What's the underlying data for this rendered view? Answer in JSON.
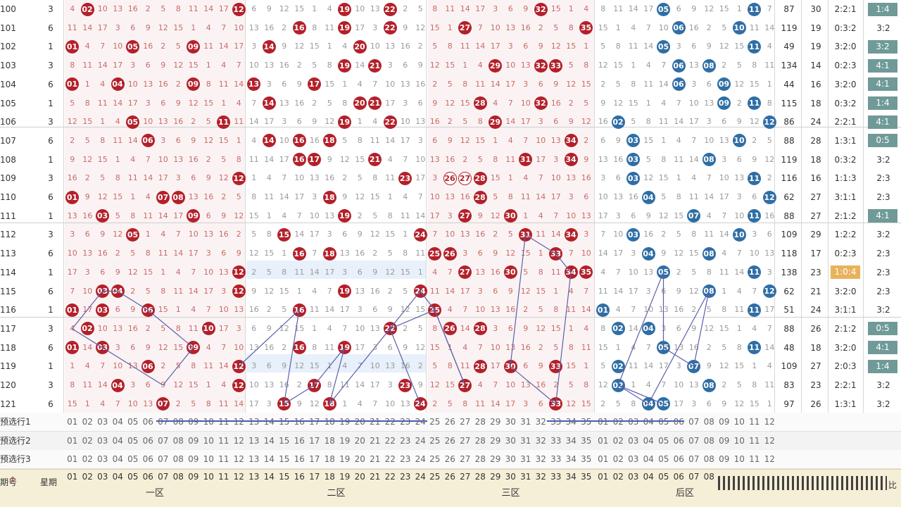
{
  "colors": {
    "red_ball": "#b3202a",
    "blue_ball": "#2f6ea5",
    "ratio_badge": "#6f9a98",
    "ratio_badge_alt": "#e9b25a",
    "zone_line": "#5a5fa8"
  },
  "rows": [
    {
      "issue": "100",
      "week": "3",
      "front": [
        2,
        12
      ],
      "z2": [
        19,
        22
      ],
      "z3": [
        32
      ],
      "back": [
        5,
        11
      ],
      "sum": "87",
      "span": "30",
      "ratio": "2:2:1",
      "odd": "1:4",
      "odd_badge": true
    },
    {
      "issue": "101",
      "week": "6",
      "front": [],
      "z2": [
        16,
        19,
        22
      ],
      "z3": [
        27,
        35
      ],
      "back": [
        6,
        10
      ],
      "sum": "119",
      "span": "19",
      "ratio": "0:3:2",
      "odd": "3:2",
      "odd_badge": false
    },
    {
      "issue": "102",
      "week": "1",
      "front": [
        1,
        5,
        9
      ],
      "z2": [
        14,
        20
      ],
      "z3": [],
      "back": [
        5,
        11
      ],
      "sum": "49",
      "span": "19",
      "ratio": "3:2:0",
      "odd": "3:2",
      "odd_badge": true
    },
    {
      "issue": "103",
      "week": "3",
      "front": [],
      "z2": [
        19,
        21
      ],
      "z3": [
        29,
        32,
        33
      ],
      "back": [
        6,
        8
      ],
      "sum": "134",
      "span": "14",
      "ratio": "0:2:3",
      "odd": "4:1",
      "odd_badge": true
    },
    {
      "issue": "104",
      "week": "6",
      "front": [
        1,
        4,
        9
      ],
      "z2": [
        13,
        17
      ],
      "z3": [],
      "back": [
        6,
        9
      ],
      "sum": "44",
      "span": "16",
      "ratio": "3:2:0",
      "odd": "4:1",
      "odd_badge": true
    },
    {
      "issue": "105",
      "week": "1",
      "front": [],
      "z2": [
        14,
        20,
        21
      ],
      "z3": [
        28,
        32
      ],
      "back": [
        9,
        11
      ],
      "sum": "115",
      "span": "18",
      "ratio": "0:3:2",
      "odd": "1:4",
      "odd_badge": true
    },
    {
      "issue": "106",
      "week": "3",
      "front": [
        5,
        11
      ],
      "z2": [
        19,
        22
      ],
      "z3": [
        29
      ],
      "back": [
        2,
        12
      ],
      "sum": "86",
      "span": "24",
      "ratio": "2:2:1",
      "odd": "4:1",
      "odd_badge": true
    },
    {
      "issue": "107",
      "week": "6",
      "front": [
        6
      ],
      "z2": [
        14,
        16,
        18
      ],
      "z3": [
        34
      ],
      "back": [
        3,
        10
      ],
      "sum": "88",
      "span": "28",
      "ratio": "1:3:1",
      "odd": "0:5",
      "odd_badge": true
    },
    {
      "issue": "108",
      "week": "1",
      "front": [],
      "z2": [
        16,
        17,
        21
      ],
      "z3": [
        31,
        34
      ],
      "back": [
        3,
        8
      ],
      "sum": "119",
      "span": "18",
      "ratio": "0:3:2",
      "odd": "3:2",
      "odd_badge": false
    },
    {
      "issue": "109",
      "week": "3",
      "front": [
        12
      ],
      "z2": [
        23
      ],
      "z3": [
        28
      ],
      "z3_hollow": [
        26,
        27
      ],
      "back": [
        3,
        11
      ],
      "sum": "116",
      "span": "16",
      "ratio": "1:1:3",
      "odd": "2:3",
      "odd_badge": false
    },
    {
      "issue": "110",
      "week": "6",
      "front": [
        1,
        7,
        8
      ],
      "z2": [
        18
      ],
      "z3": [
        28
      ],
      "back": [
        4,
        12
      ],
      "sum": "62",
      "span": "27",
      "ratio": "3:1:1",
      "odd": "2:3",
      "odd_badge": false
    },
    {
      "issue": "111",
      "week": "1",
      "front": [
        3,
        9
      ],
      "z2": [
        19
      ],
      "z3": [
        27,
        30
      ],
      "back": [
        7,
        11
      ],
      "sum": "88",
      "span": "27",
      "ratio": "2:1:2",
      "odd": "4:1",
      "odd_badge": true
    },
    {
      "issue": "112",
      "week": "3",
      "front": [
        5
      ],
      "z2": [
        15,
        24
      ],
      "z3": [
        31,
        34
      ],
      "back": [
        3,
        10
      ],
      "sum": "109",
      "span": "29",
      "ratio": "1:2:2",
      "odd": "3:2",
      "odd_badge": false
    },
    {
      "issue": "113",
      "week": "6",
      "front": [],
      "z2": [
        16,
        18
      ],
      "z3": [
        25,
        26,
        33
      ],
      "back": [
        4,
        8
      ],
      "sum": "118",
      "span": "17",
      "ratio": "0:2:3",
      "odd": "2:3",
      "odd_badge": false
    },
    {
      "issue": "114",
      "week": "1",
      "front": [
        12
      ],
      "z2": [],
      "z3": [
        27,
        30,
        34,
        35
      ],
      "back": [
        5,
        11
      ],
      "sum": "138",
      "span": "23",
      "ratio": "1:0:4",
      "odd": "2:3",
      "odd_badge": false,
      "ratio_badge": true
    },
    {
      "issue": "115",
      "week": "6",
      "front": [
        3,
        4,
        12
      ],
      "z2": [
        19,
        24
      ],
      "z3": [],
      "back": [
        8,
        12
      ],
      "sum": "62",
      "span": "21",
      "ratio": "3:2:0",
      "odd": "2:3",
      "odd_badge": false
    },
    {
      "issue": "116",
      "week": "1",
      "front": [
        1,
        3,
        6
      ],
      "z2": [
        16
      ],
      "z3": [
        25
      ],
      "back": [
        1,
        11
      ],
      "sum": "51",
      "span": "24",
      "ratio": "3:1:1",
      "odd": "3:2",
      "odd_badge": false
    },
    {
      "issue": "117",
      "week": "3",
      "front": [
        2,
        10
      ],
      "z2": [
        22
      ],
      "z3": [
        26,
        28
      ],
      "back": [
        2,
        4
      ],
      "sum": "88",
      "span": "26",
      "ratio": "2:1:2",
      "odd": "0:5",
      "odd_badge": true
    },
    {
      "issue": "118",
      "week": "6",
      "front": [
        1,
        3,
        9
      ],
      "z2": [
        16,
        19
      ],
      "z3": [],
      "back": [
        5,
        11
      ],
      "sum": "48",
      "span": "18",
      "ratio": "3:2:0",
      "odd": "4:1",
      "odd_badge": true
    },
    {
      "issue": "119",
      "week": "1",
      "front": [
        6,
        12
      ],
      "z2": [],
      "z3": [
        28,
        30,
        33
      ],
      "back": [
        2,
        7
      ],
      "sum": "109",
      "span": "27",
      "ratio": "2:0:3",
      "odd": "1:4",
      "odd_badge": true
    },
    {
      "issue": "120",
      "week": "3",
      "front": [
        4,
        12
      ],
      "z2": [
        17,
        23
      ],
      "z3": [
        27
      ],
      "back": [
        2,
        8
      ],
      "sum": "83",
      "span": "23",
      "ratio": "2:2:1",
      "odd": "3:2",
      "odd_badge": false
    },
    {
      "issue": "121",
      "week": "6",
      "front": [
        7
      ],
      "z2": [
        15,
        18,
        24
      ],
      "z3": [
        33
      ],
      "back": [
        4,
        5
      ],
      "sum": "97",
      "span": "26",
      "ratio": "1:3:1",
      "odd": "3:2",
      "odd_badge": false
    }
  ],
  "selection_rows": [
    {
      "label": "预选行1"
    },
    {
      "label": "预选行2"
    },
    {
      "label": "预选行3"
    }
  ],
  "footer": {
    "issue_label": "期号",
    "week_label": "星期",
    "zones": [
      "一区",
      "二区",
      "三区",
      "后区"
    ],
    "last_label": "比"
  }
}
